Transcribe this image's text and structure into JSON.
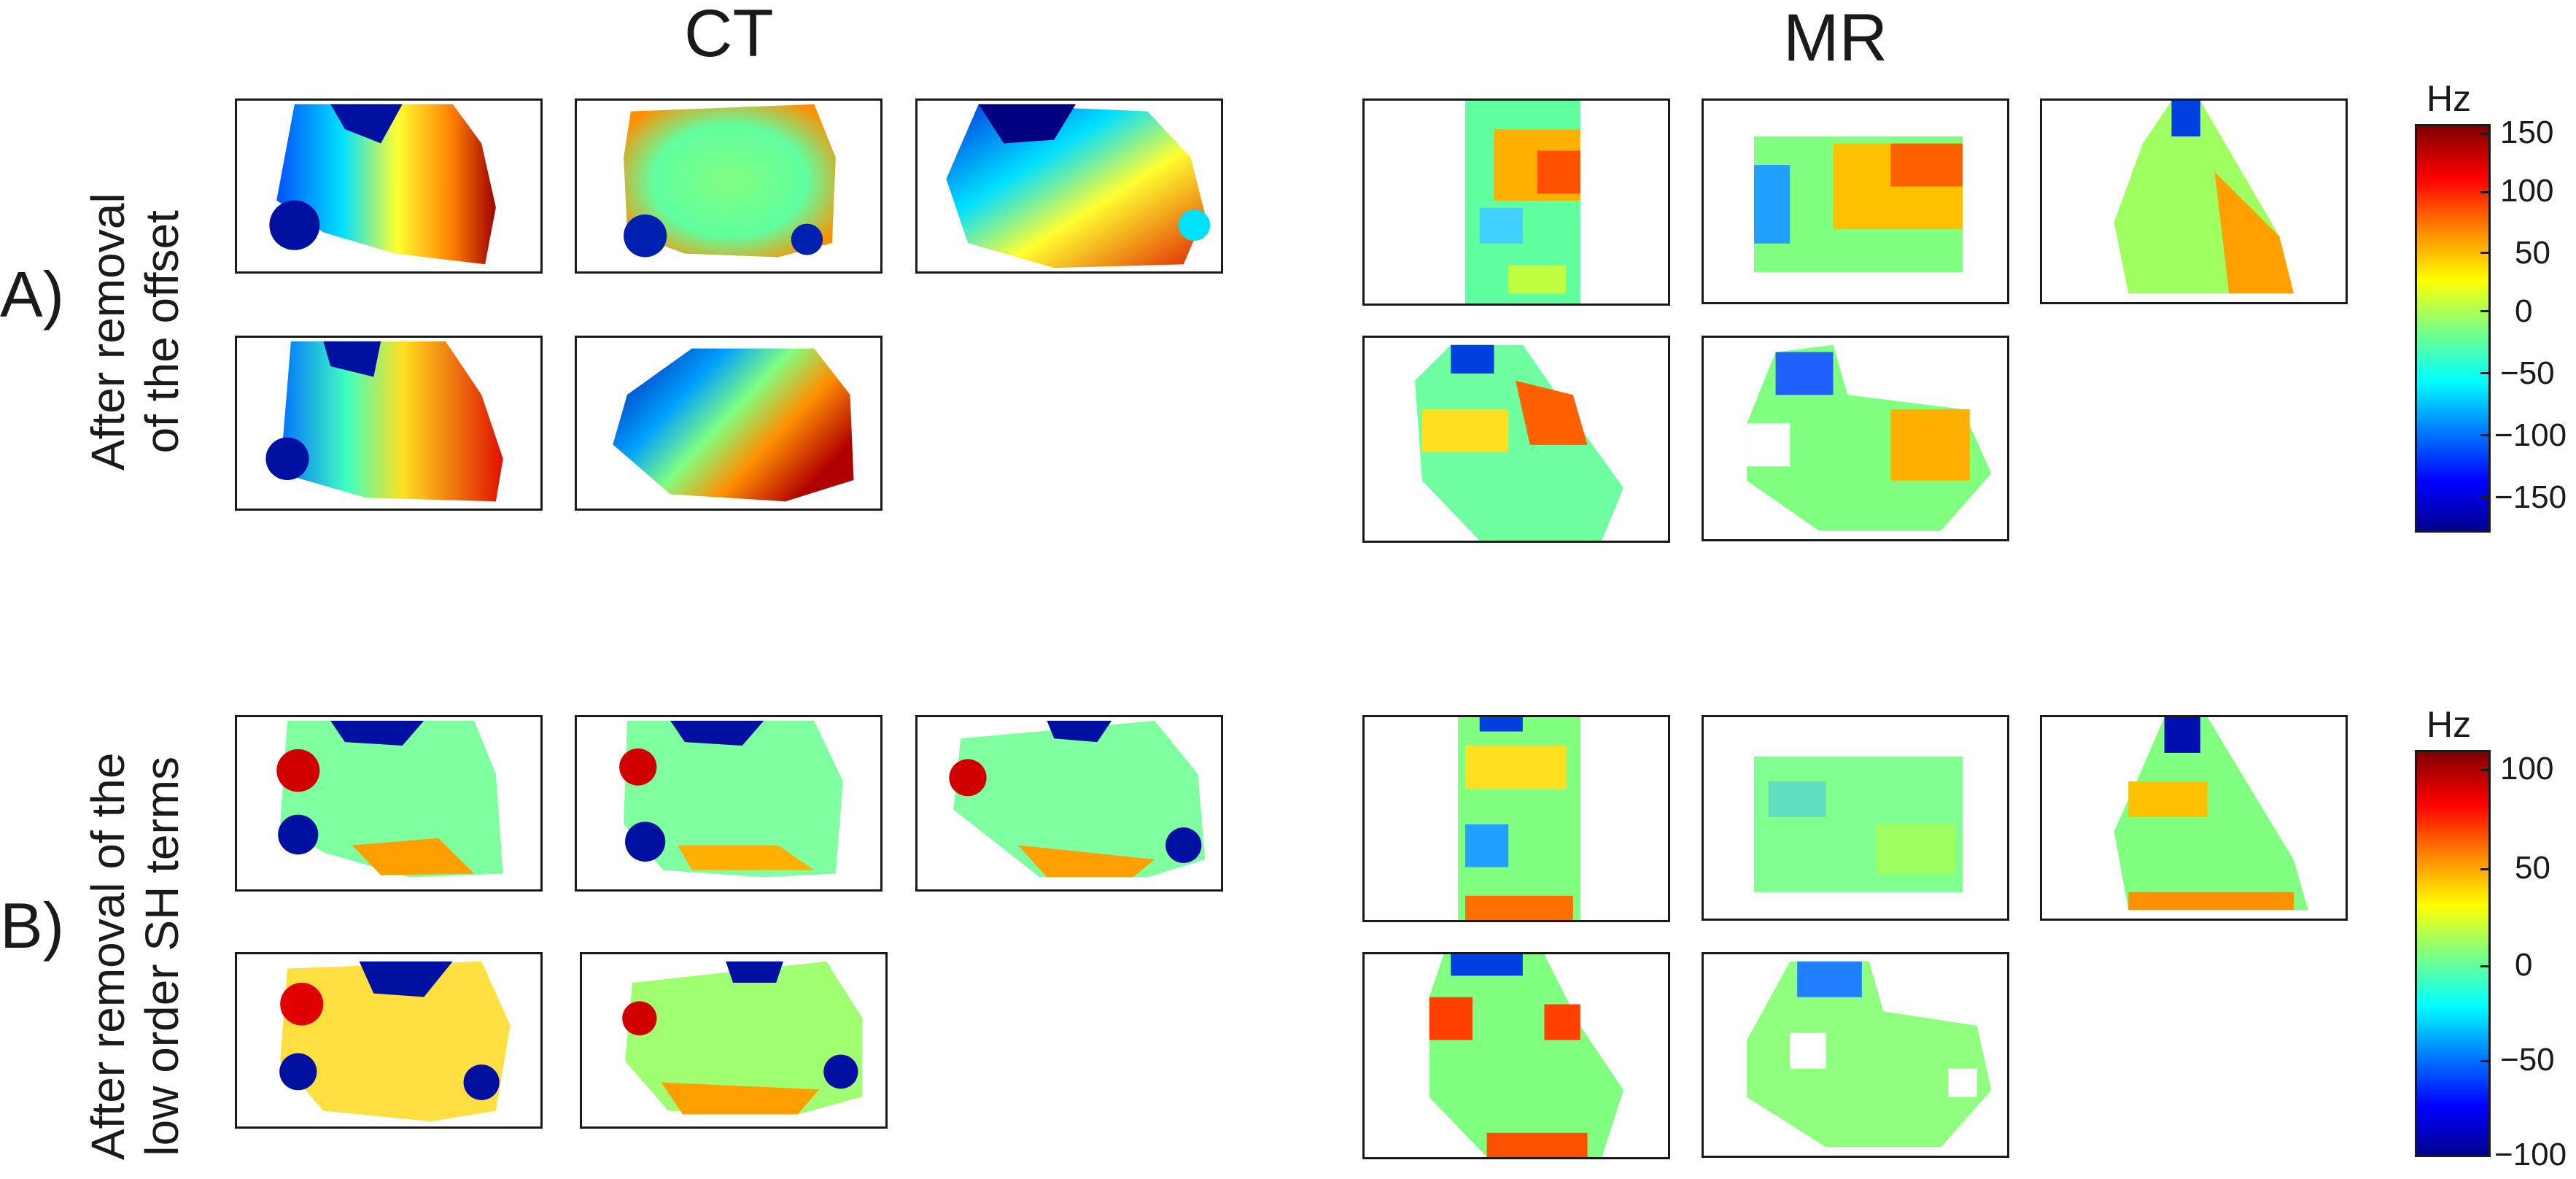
{
  "columns": {
    "ct": "CT",
    "mr": "MR"
  },
  "rows": {
    "a": {
      "letter": "A)",
      "caption_line1": "After removal",
      "caption_line2": "of the offset"
    },
    "b": {
      "letter": "B)",
      "caption_line1": "After removal of the",
      "caption_line2": "low order SH terms"
    }
  },
  "colorbars": {
    "a": {
      "unit": "Hz",
      "ticks": [
        "150",
        "100",
        "50",
        "0",
        "−50",
        "−100",
        "−150"
      ]
    },
    "b": {
      "unit": "Hz",
      "ticks": [
        "100",
        "50",
        "0",
        "−50",
        "−100"
      ]
    }
  },
  "colors": {
    "border": "#1a1a1a",
    "hot": "#d40000",
    "cold": "#00008f",
    "neutral": "#7fff7f"
  }
}
